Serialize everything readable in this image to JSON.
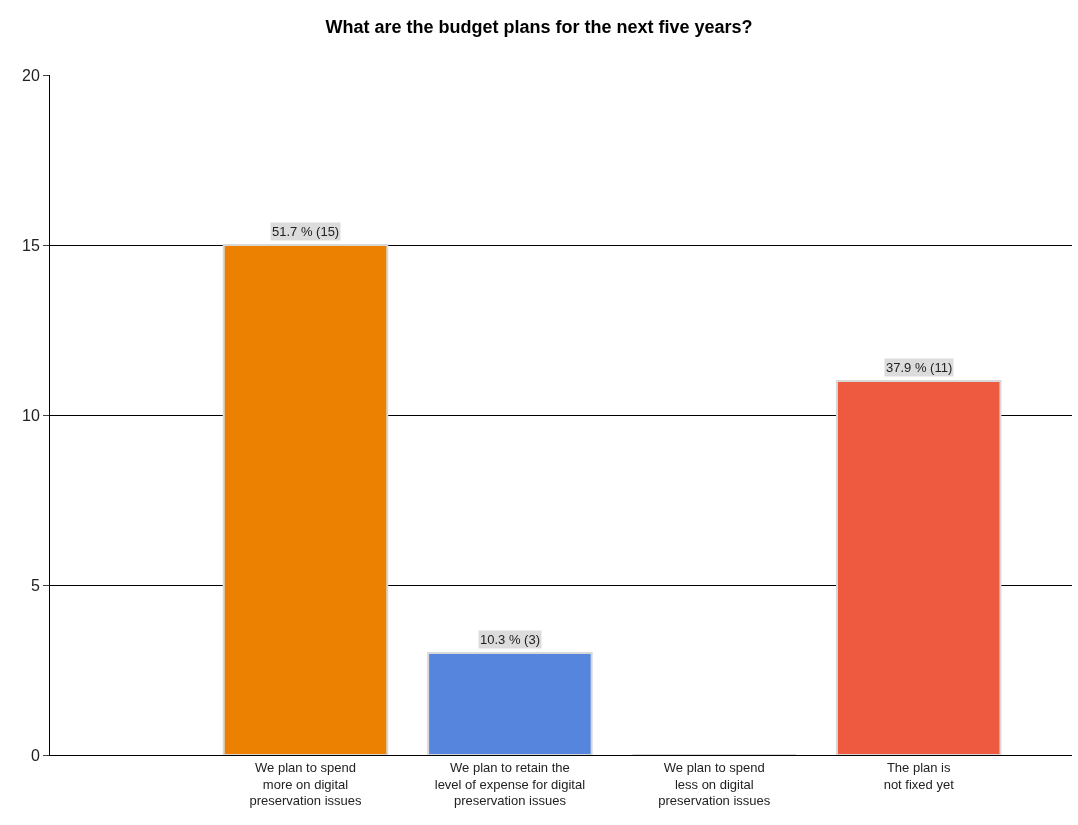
{
  "chart_data": {
    "type": "bar",
    "title": "What are the budget plans for the next five years?",
    "categories": [
      "We plan to spend\nmore on digital\npreservation issues",
      "We plan to retain the\nlevel of expense for digital\npreservation issues",
      "We plan to spend\nless on digital\npreservation issues",
      "The plan is\nnot fixed yet"
    ],
    "values": [
      15,
      3,
      0,
      11
    ],
    "colors": [
      "#ec8000",
      "#5585dc",
      "#d8d8d8",
      "#ee5a40"
    ],
    "value_labels": [
      "51.7 % (15)",
      "10.3 % (3)",
      null,
      "37.9 % (11)"
    ],
    "ylim": [
      0,
      20
    ],
    "yticks": [
      0,
      5,
      10,
      15,
      20
    ],
    "grid": "y",
    "legend": false
  }
}
